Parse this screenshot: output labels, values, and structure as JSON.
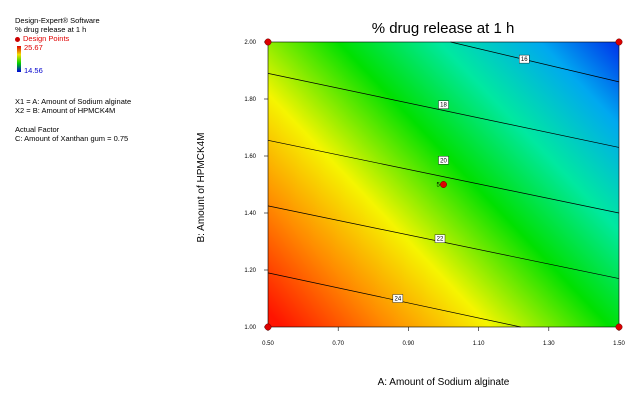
{
  "legend": {
    "software": "Design-Expert® Software",
    "response": "% drug release at 1 h",
    "design_points_label": "Design Points",
    "color_max": "25.67",
    "color_min": "14.56",
    "x1": "X1 = A: Amount of Sodium alginate",
    "x2": "X2 = B: Amount of HPMCK4M",
    "actual_factor_heading": "Actual Factor",
    "actual_factor": "C: Amount of Xanthan gum = 0.75"
  },
  "chart_data": {
    "type": "contour",
    "title": "% drug release at 1 h",
    "xlabel": "A: Amount of Sodium alginate",
    "ylabel": "B: Amount of HPMCK4M",
    "xlim": [
      0.5,
      1.5
    ],
    "ylim": [
      1.0,
      2.0
    ],
    "x_ticks": [
      "0.50",
      "0.70",
      "0.90",
      "1.10",
      "1.30",
      "1.50"
    ],
    "y_ticks": [
      "1.00",
      "1.20",
      "1.40",
      "1.60",
      "1.80",
      "2.00"
    ],
    "color_range": [
      14.56,
      25.67
    ],
    "contours": [
      {
        "level": 16,
        "label": "16",
        "points": [
          [
            1.02,
            2.0
          ],
          [
            1.5,
            1.86
          ]
        ],
        "label_at": [
          1.23,
          1.94
        ]
      },
      {
        "level": 18,
        "label": "18",
        "points": [
          [
            0.5,
            1.89
          ],
          [
            1.5,
            1.63
          ]
        ],
        "label_at": [
          1.0,
          1.78
        ]
      },
      {
        "level": 20,
        "label": "20",
        "points": [
          [
            0.5,
            1.655
          ],
          [
            1.5,
            1.4
          ]
        ],
        "label_at": [
          1.0,
          1.585
        ]
      },
      {
        "level": 22,
        "label": "22",
        "points": [
          [
            0.5,
            1.425
          ],
          [
            1.5,
            1.17
          ]
        ],
        "label_at": [
          0.99,
          1.31
        ]
      },
      {
        "level": 24,
        "label": "24",
        "points": [
          [
            0.5,
            1.19
          ],
          [
            1.22,
            1.0
          ]
        ],
        "label_at": [
          0.87,
          1.1
        ]
      }
    ],
    "design_points": [
      {
        "x": 0.5,
        "y": 1.0
      },
      {
        "x": 1.5,
        "y": 1.0
      },
      {
        "x": 0.5,
        "y": 2.0
      },
      {
        "x": 1.5,
        "y": 2.0
      },
      {
        "x": 1.0,
        "y": 1.5,
        "label": "5"
      }
    ]
  }
}
